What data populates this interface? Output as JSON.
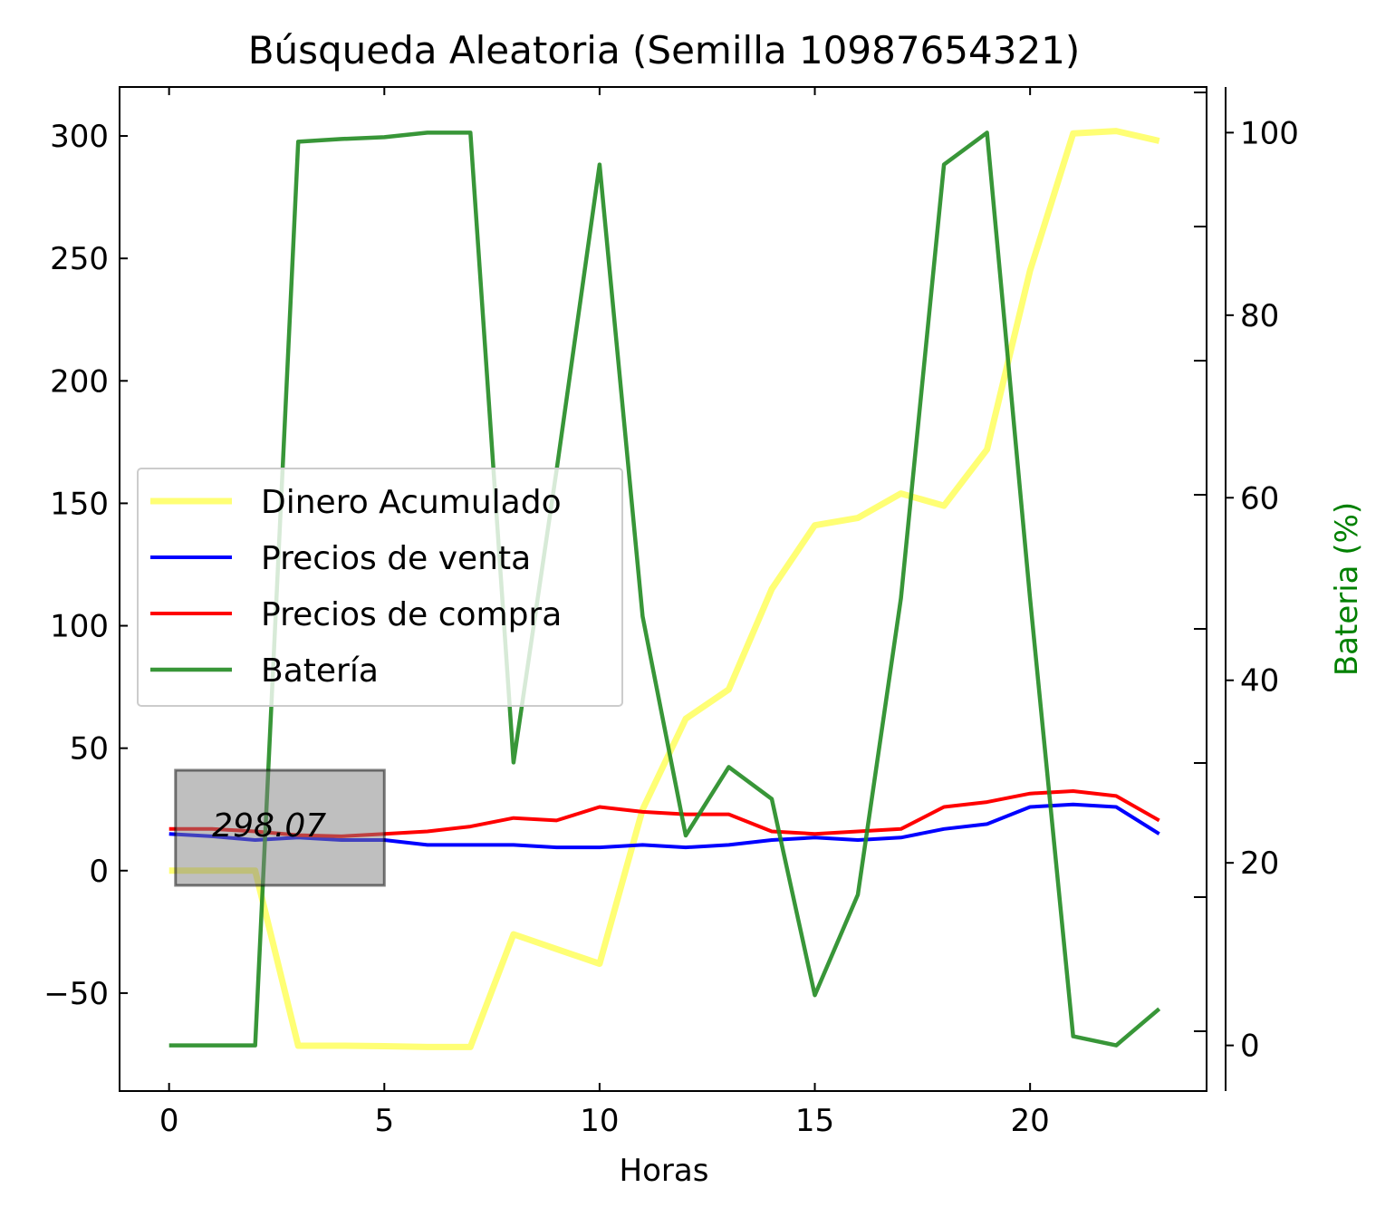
{
  "chart_data": {
    "type": "line",
    "title": "Búsqueda Aleatoria (Semilla 10987654321)",
    "xlabel": "Horas",
    "ylabel": "",
    "y2label": "Bateria (%)",
    "xlim": [
      -1.15,
      24.1
    ],
    "ylim": [
      -90,
      320
    ],
    "y2lim": [
      -5,
      105
    ],
    "x_ticks": [
      0,
      5,
      10,
      15,
      20
    ],
    "y_ticks": [
      -50,
      0,
      50,
      100,
      150,
      200,
      250,
      300
    ],
    "y_tick_labels": [
      "−50",
      "0",
      "50",
      "100",
      "150",
      "200",
      "250",
      "300"
    ],
    "y2_ticks": [
      0,
      20,
      40,
      60,
      80,
      100
    ],
    "legend_position": "center-left",
    "x": [
      0,
      1,
      2,
      3,
      4,
      5,
      6,
      7,
      8,
      9,
      10,
      11,
      12,
      13,
      14,
      15,
      16,
      17,
      18,
      19,
      20,
      21,
      22,
      23
    ],
    "series": [
      {
        "name": "Dinero Acumulado",
        "axis": "left",
        "color": "#ffff66",
        "values": [
          0,
          0,
          0,
          -71.5,
          -71.5,
          -71.7,
          -72,
          -72,
          -26,
          -32,
          -38,
          25,
          62,
          74,
          115,
          141,
          144,
          154,
          149,
          172,
          245,
          301,
          302,
          298
        ]
      },
      {
        "name": "Precios de venta",
        "axis": "left",
        "color": "#0000ff",
        "values": [
          15,
          14,
          12.5,
          13.5,
          12.5,
          12.5,
          10.5,
          10.5,
          10.5,
          9.5,
          9.5,
          10.5,
          9.5,
          10.5,
          12.5,
          13.5,
          12.5,
          13.5,
          17,
          19,
          26,
          27,
          26,
          15
        ]
      },
      {
        "name": "Precios de compra",
        "axis": "left",
        "color": "#ff0000",
        "values": [
          17,
          17,
          16,
          14.5,
          14,
          15,
          16,
          18,
          21.5,
          20.5,
          26,
          24,
          23,
          23,
          16,
          15,
          16,
          17,
          26,
          28,
          31.5,
          32.5,
          30.5,
          20.5
        ]
      },
      {
        "name": "Batería",
        "axis": "right",
        "color": "#228b22",
        "values": [
          0,
          0,
          0,
          99,
          99.3,
          99.5,
          100,
          100,
          31,
          63,
          96.5,
          47,
          23,
          30.5,
          27,
          5.5,
          16.5,
          49,
          96.5,
          100,
          49,
          1,
          0,
          4
        ]
      }
    ],
    "annotation": {
      "text": "298.07",
      "x": 1.0,
      "y": 14,
      "box_x": [
        0.15,
        5.0
      ],
      "box_y": [
        -6,
        41
      ]
    }
  }
}
